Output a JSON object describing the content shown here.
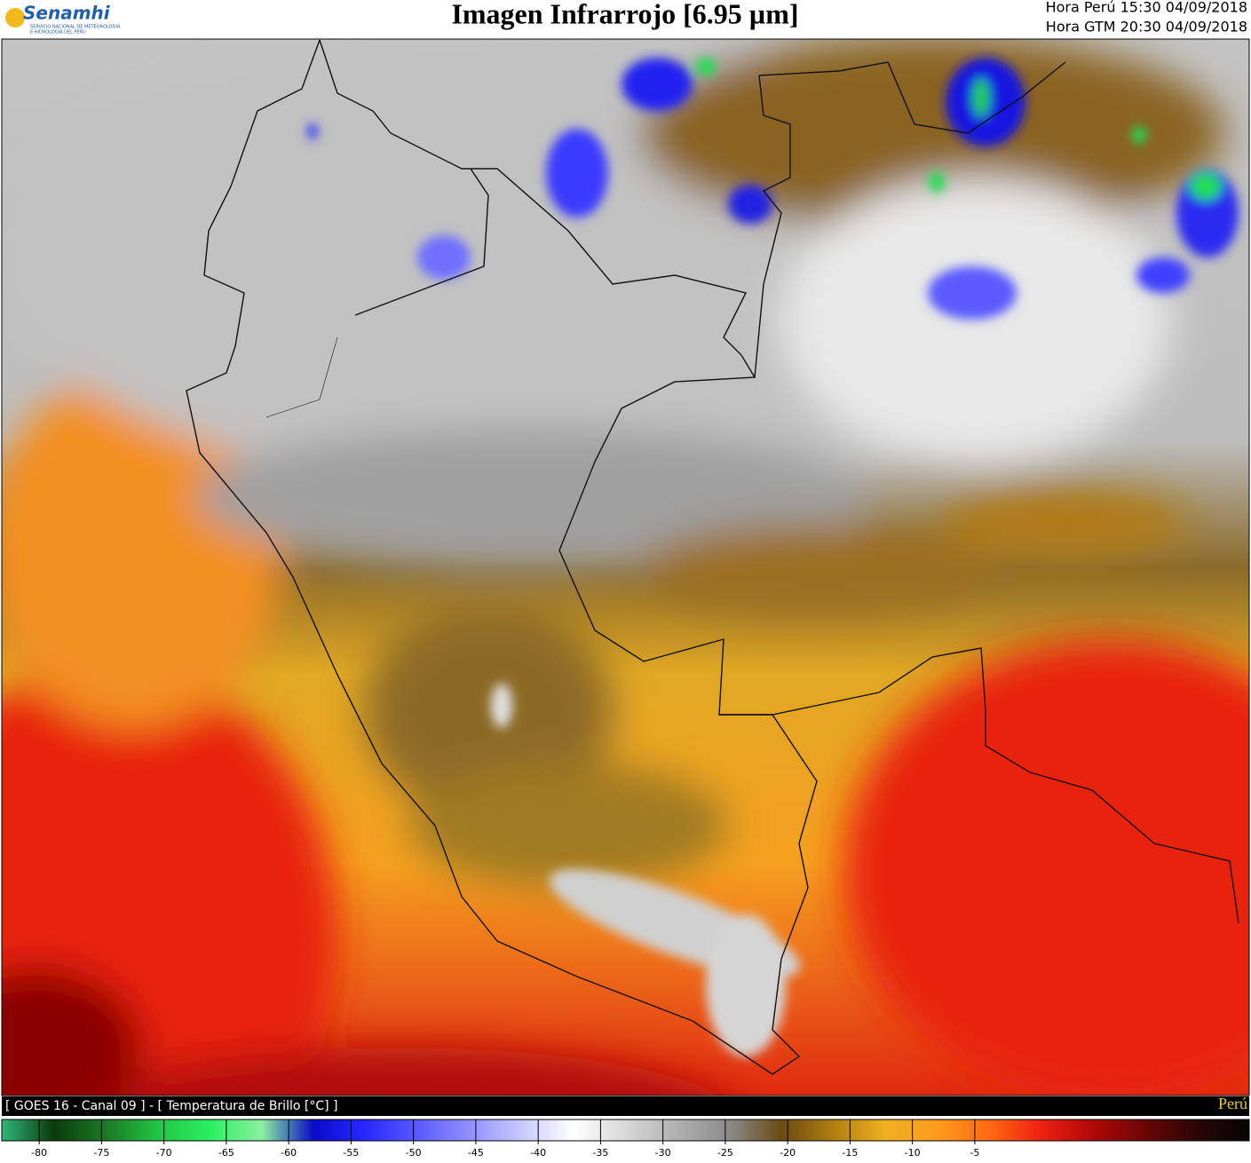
{
  "header": {
    "logo": "Senamhi",
    "logo_subtitle": [
      "SERVICIO NACIONAL DE METEOROLOGIA",
      "E HIDROLOGIA DEL PERU"
    ],
    "title": "Imagen Infrarrojo [6.95 µm]",
    "time_local": "Hora Perú 15:30 04/09/2018",
    "time_utc": "Hora GTM 20:30 04/09/2018"
  },
  "footer": {
    "caption": "[ GOES 16 - Canal 09 ] - [ Temperatura de Brillo [°C] ]",
    "region": "Perú"
  },
  "colorbar": {
    "range": [
      -83,
      17
    ],
    "ticks": [
      -80,
      -75,
      -70,
      -65,
      -60,
      -55,
      -50,
      -45,
      -40,
      -35,
      -30,
      -25,
      -20,
      -15,
      -10,
      -5
    ],
    "colors": [
      "#2fb877",
      "#0b3a0b",
      "#1a7a26",
      "#22c444",
      "#2af060",
      "#8af0a0",
      "#0a0ac8",
      "#2828ff",
      "#5a5aff",
      "#9090ff",
      "#c8c8ff",
      "#ffffff",
      "#d8d8d8",
      "#b0b0b0",
      "#8a8a8a",
      "#6b4a12",
      "#b07e12",
      "#f0b020",
      "#ff9a1e",
      "#ff6a12",
      "#ee2010",
      "#b00808",
      "#6a0606",
      "#2a0505",
      "#050505"
    ]
  }
}
